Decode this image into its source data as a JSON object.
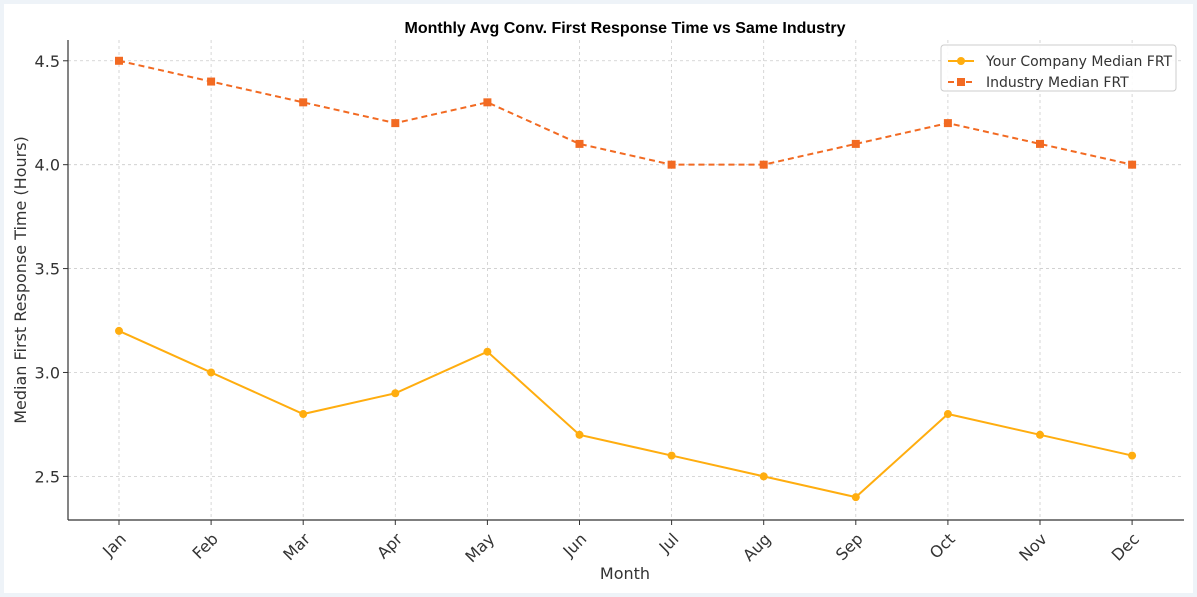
{
  "chart_data": {
    "type": "line",
    "title": "Monthly Avg Conv. First Response Time vs Same Industry",
    "xlabel": "Month",
    "ylabel": "Median First Response Time (Hours)",
    "categories": [
      "Jan",
      "Feb",
      "Mar",
      "Apr",
      "May",
      "Jun",
      "Jul",
      "Aug",
      "Sep",
      "Oct",
      "Nov",
      "Dec"
    ],
    "series": [
      {
        "name": "Your Company Median FRT",
        "values": [
          3.2,
          3.0,
          2.8,
          2.9,
          3.1,
          2.7,
          2.6,
          2.5,
          2.4,
          2.8,
          2.7,
          2.6
        ],
        "color": "#ffad0f",
        "marker": "circle",
        "line_style": "solid"
      },
      {
        "name": "Industry Median FRT",
        "values": [
          4.5,
          4.4,
          4.3,
          4.2,
          4.3,
          4.1,
          4.0,
          4.0,
          4.1,
          4.2,
          4.1,
          4.0
        ],
        "color": "#f26a22",
        "marker": "square",
        "line_style": "dashed"
      }
    ],
    "yticks": [
      "2.5",
      "3.0",
      "3.5",
      "4.0",
      "4.5"
    ],
    "ylim": [
      2.29,
      4.6
    ],
    "grid": true,
    "legend_position": "top-right"
  }
}
